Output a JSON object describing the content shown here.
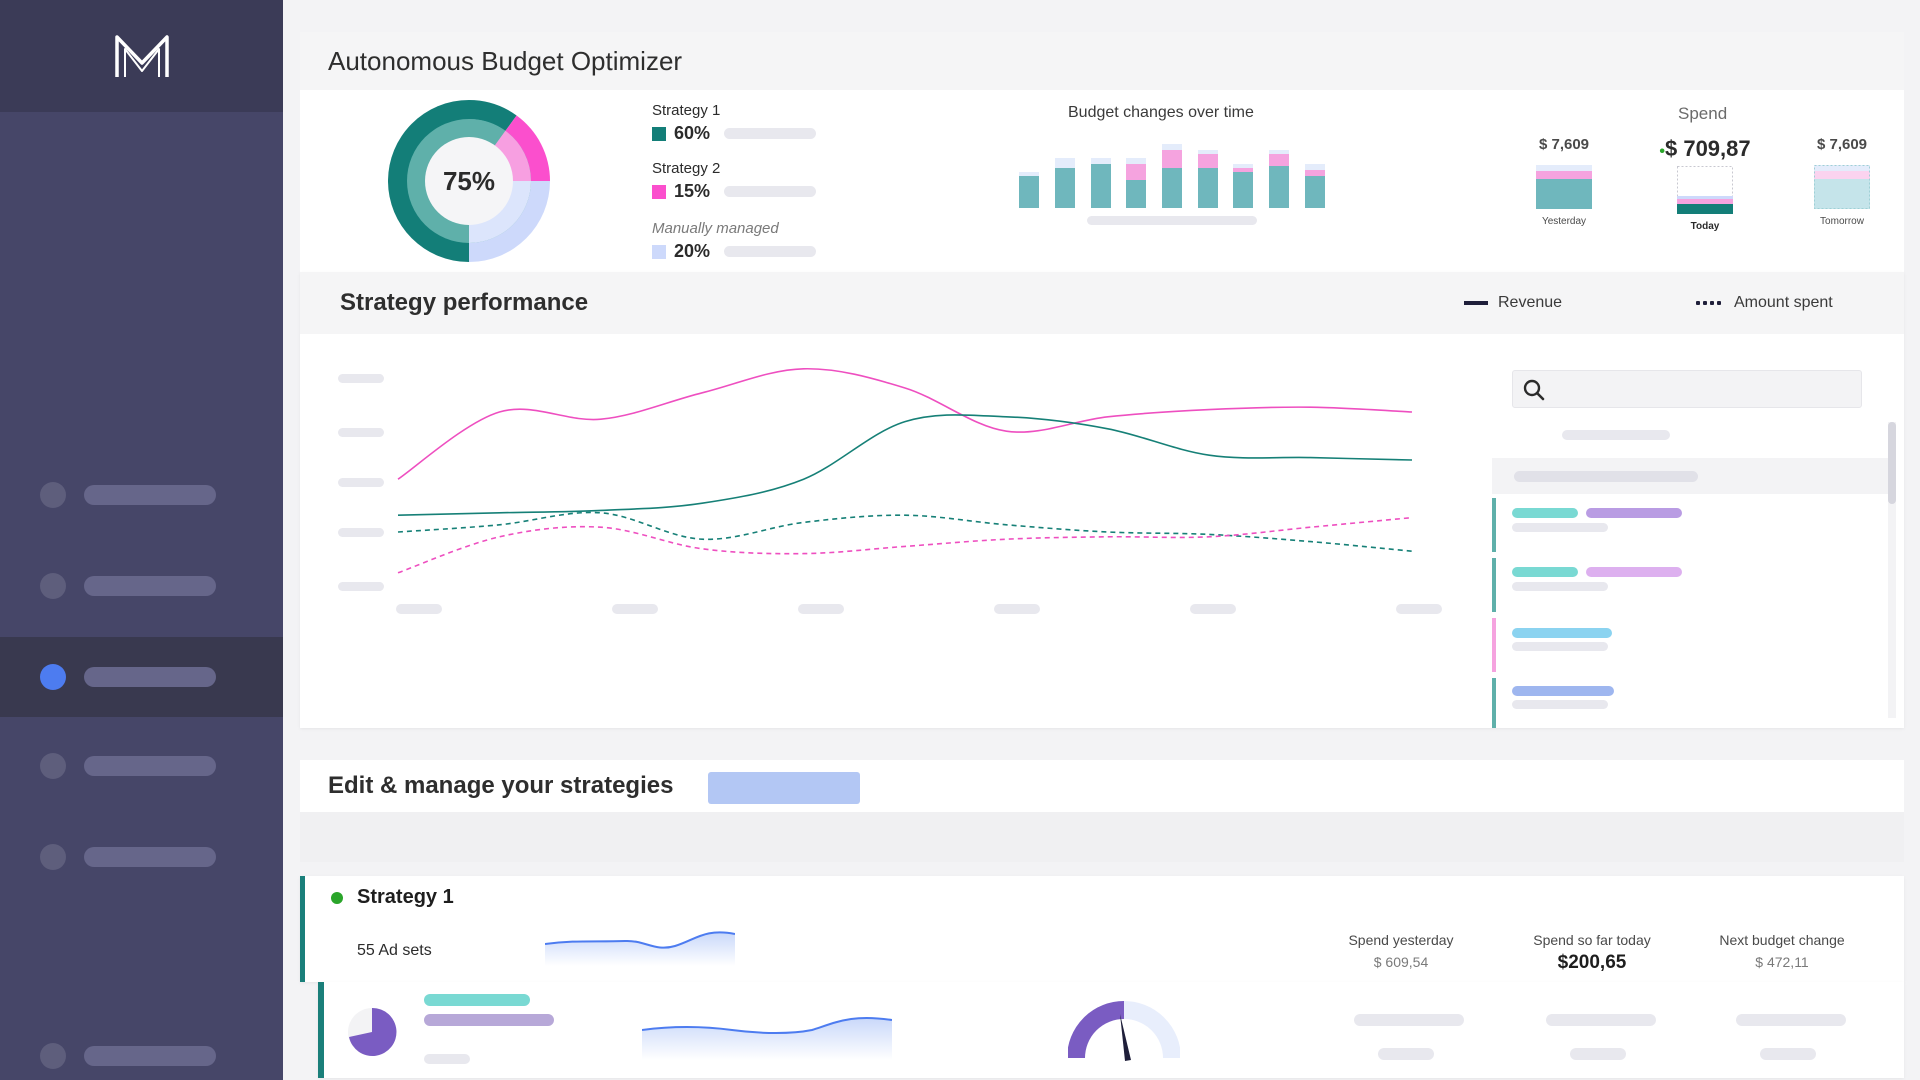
{
  "sidebar": {
    "logo": "M",
    "items": [
      {
        "icon": "nav-dot",
        "active": false
      },
      {
        "icon": "nav-dot",
        "active": false
      },
      {
        "icon": "nav-dot",
        "active": true
      },
      {
        "icon": "nav-dot",
        "active": false
      },
      {
        "icon": "nav-dot",
        "active": false
      },
      {
        "icon": "nav-dot",
        "active": false
      }
    ]
  },
  "header": {
    "title": "Autonomous Budget Optimizer"
  },
  "allocation": {
    "center_label": "75%",
    "strategies": [
      {
        "name": "Strategy 1",
        "pct": "60%",
        "color": "#137e78"
      },
      {
        "name": "Strategy 2",
        "pct": "15%",
        "color": "#fb4fcd"
      },
      {
        "name": "Manually managed",
        "pct": "20%",
        "color": "#cdd9fb"
      }
    ]
  },
  "budget_changes": {
    "title": "Budget changes over time"
  },
  "spend": {
    "title": "Spend",
    "yesterday": {
      "value": "$ 7,609",
      "caption": "Yesterday"
    },
    "today": {
      "value": "$ 709,87",
      "caption": "Today"
    },
    "tomorrow": {
      "value": "$ 7,609",
      "caption": "Tomorrow"
    }
  },
  "performance": {
    "title": "Strategy performance",
    "legend_revenue": "Revenue",
    "legend_amount": "Amount spent"
  },
  "chart_data": {
    "type": "line",
    "series": [
      {
        "name": "Revenue",
        "color": "#ee4fc0",
        "style": "solid",
        "values": [
          0.52,
          0.8,
          0.77,
          0.88,
          0.98,
          0.9,
          0.72,
          0.78,
          0.81,
          0.82,
          0.8
        ]
      },
      {
        "name": "Revenue",
        "color": "#168077",
        "style": "solid",
        "values": [
          0.37,
          0.38,
          0.39,
          0.42,
          0.52,
          0.76,
          0.78,
          0.73,
          0.62,
          0.61,
          0.6
        ]
      },
      {
        "name": "Amount spent",
        "color": "#168077",
        "style": "dashed",
        "values": [
          0.3,
          0.33,
          0.38,
          0.27,
          0.34,
          0.37,
          0.33,
          0.3,
          0.29,
          0.26,
          0.22
        ]
      },
      {
        "name": "Amount spent",
        "color": "#ee4fc0",
        "style": "dashed",
        "values": [
          0.13,
          0.28,
          0.32,
          0.23,
          0.21,
          0.24,
          0.27,
          0.28,
          0.28,
          0.32,
          0.36
        ]
      }
    ],
    "grid": false,
    "legend": "top-right"
  },
  "edit": {
    "title": "Edit & manage your strategies"
  },
  "strategy1": {
    "name": "Strategy 1",
    "adsets": "55 Ad sets",
    "spend_yesterday_label": "Spend yesterday",
    "spend_yesterday": "$ 609,54",
    "spend_today_label": "Spend so far today",
    "spend_today": "$200,65",
    "next_change_label": "Next budget change",
    "next_change": "$ 472,11"
  }
}
